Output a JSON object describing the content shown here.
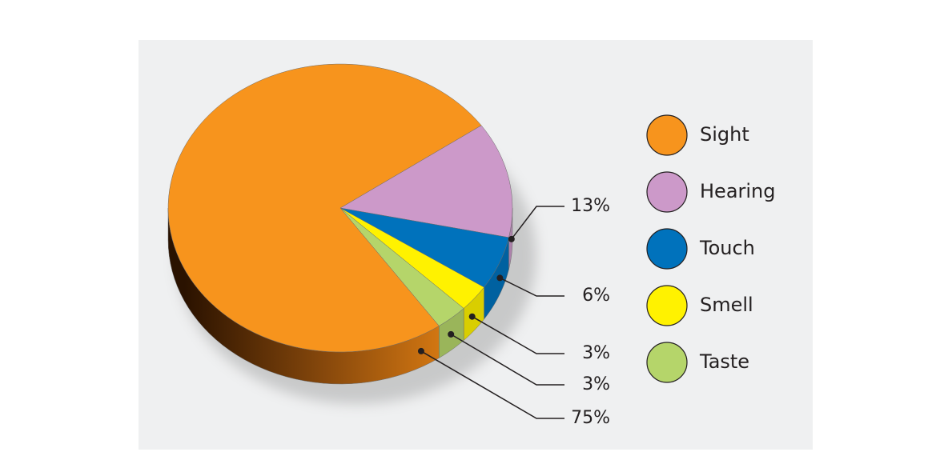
{
  "chart_data": {
    "type": "pie",
    "categories": [
      "Sight",
      "Hearing",
      "Touch",
      "Smell",
      "Taste"
    ],
    "values": [
      75,
      13,
      6,
      3,
      3
    ],
    "value_labels": [
      "75%",
      "13%",
      "6%",
      "3%",
      "3%"
    ],
    "colors": [
      "#f7941d",
      "#cc99c9",
      "#0072bc",
      "#fff200",
      "#b5d56a"
    ]
  }
}
